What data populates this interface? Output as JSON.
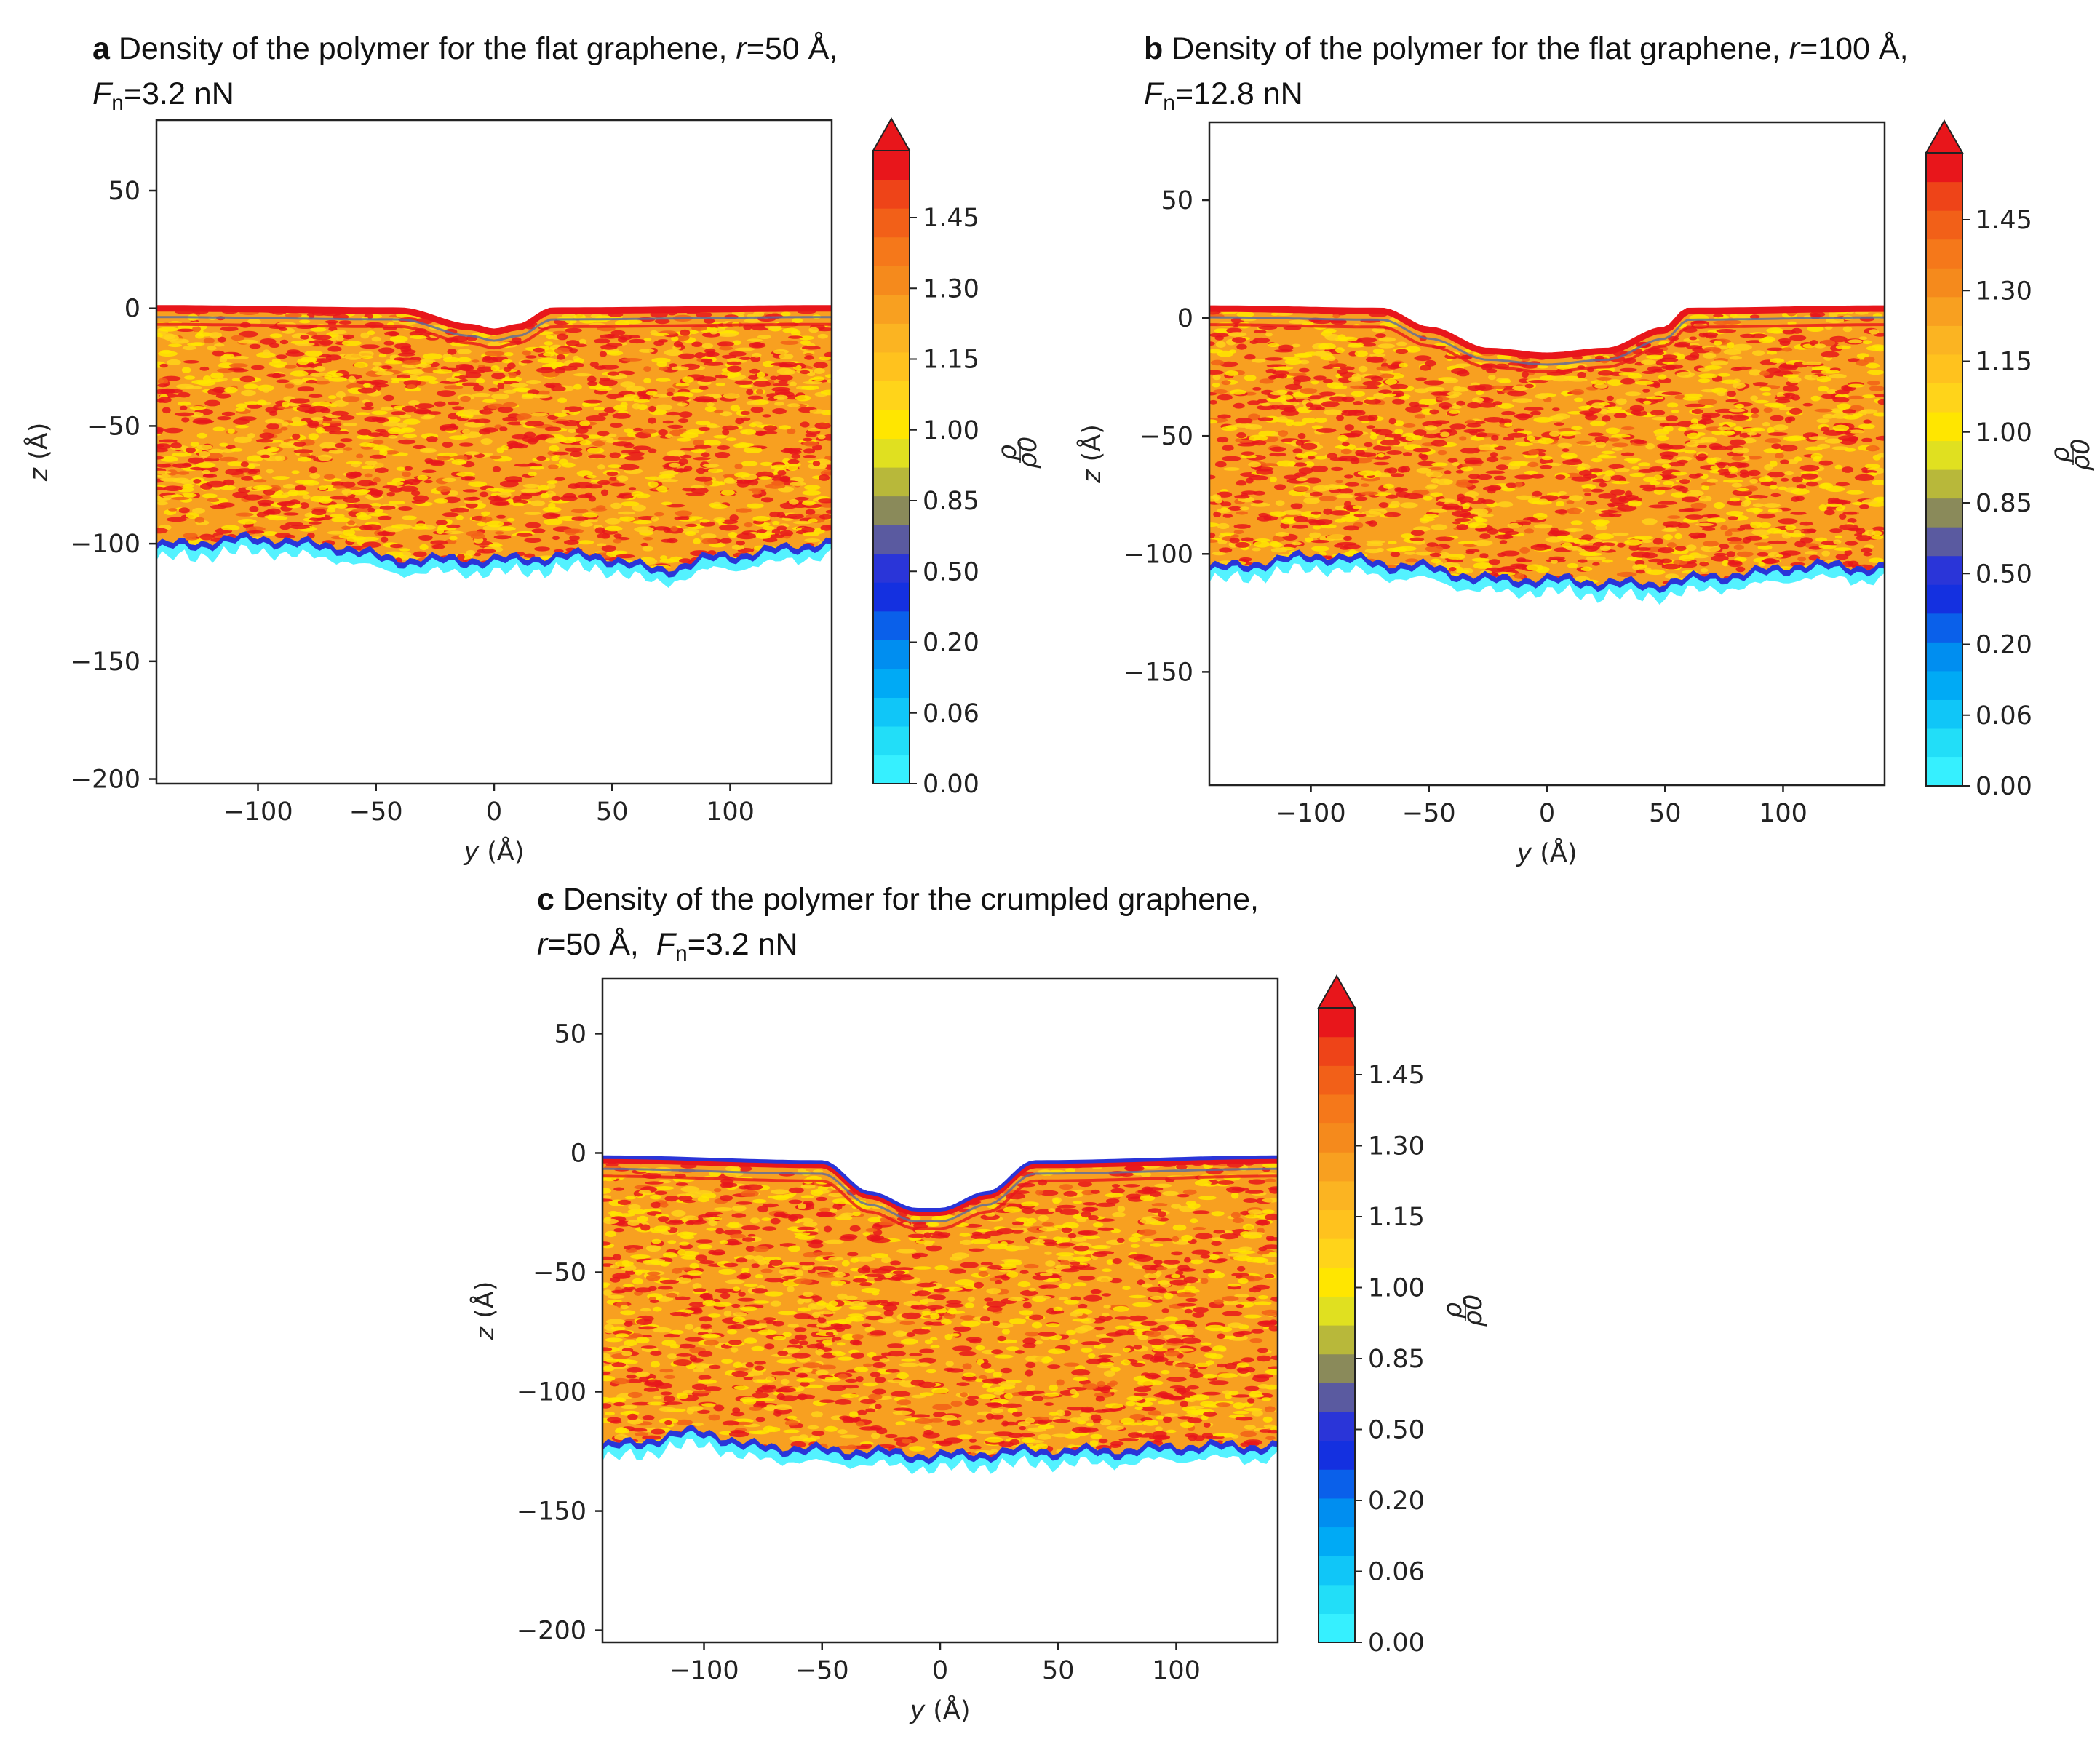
{
  "figure": {
    "panels": [
      {
        "id": "a",
        "letter": "a",
        "title_line1": "Density of the polymer for the flat graphene,",
        "title_r_sym": "r",
        "title_r_val": "=50 Å,",
        "title_F_sym": "F",
        "title_F_sub": "n",
        "title_F_val": "=3.2 nN"
      },
      {
        "id": "b",
        "letter": "b",
        "title_line1": "Density of the polymer for the flat graphene,",
        "title_r_sym": "r",
        "title_r_val": "=100 Å,",
        "title_F_sym": "F",
        "title_F_sub": "n",
        "title_F_val": "=12.8 nN"
      },
      {
        "id": "c",
        "letter": "c",
        "title_line1": "Density of the polymer for the crumpled graphene,",
        "title_r_sym": "r",
        "title_r_val": "=50 Å,",
        "title_F_sym": "F",
        "title_F_sub": "n",
        "title_F_val": "=3.2 nN"
      }
    ],
    "colors": {
      "very_high": "#e8161b",
      "high": "#f5781a",
      "mid": "#fbb422",
      "low_mid": "#ffe600",
      "neutral": "#8a8a5a",
      "low": "#2a35d8",
      "very_low": "#00b4ff",
      "zero": "#36f0ff",
      "frame": "#222222"
    }
  },
  "chart_data": [
    {
      "panel": "a",
      "type": "heatmap",
      "title": "Density of the polymer for the flat graphene, r=50 Å, Fn=3.2 nN",
      "xlabel": "y (Å)",
      "ylabel": "z (Å)",
      "colorbar_label": "ρ/ρ0",
      "xlim": [
        -143,
        143
      ],
      "ylim": [
        -202,
        80
      ],
      "xticks": [
        -100,
        -50,
        0,
        50,
        100
      ],
      "yticks": [
        50,
        0,
        -50,
        -100,
        -150,
        -200
      ],
      "colorbar_ticks": [
        "0.00",
        "0.06",
        "0.20",
        "0.50",
        "0.85",
        "1.00",
        "1.15",
        "1.30",
        "1.45"
      ],
      "surface_profile": {
        "y": [
          -143,
          -40,
          -10,
          0,
          10,
          25,
          143
        ],
        "z": [
          0,
          -1,
          -8,
          -10,
          -8,
          -1,
          0
        ]
      },
      "bottom_profile": {
        "y": [
          -143,
          -100,
          -70,
          -40,
          0,
          40,
          70,
          100,
          143
        ],
        "z": [
          -100,
          -97,
          -100,
          -106,
          -106,
          -104,
          -110,
          -104,
          -99
        ]
      }
    },
    {
      "panel": "b",
      "type": "heatmap",
      "title": "Density of the polymer for the flat graphene, r=100 Å, Fn=12.8 nN",
      "xlabel": "y (Å)",
      "ylabel": "z (Å)",
      "colorbar_label": "ρ/ρ0",
      "xlim": [
        -143,
        143
      ],
      "ylim": [
        -198,
        83
      ],
      "xticks": [
        -100,
        -50,
        0,
        50,
        100
      ],
      "yticks": [
        50,
        0,
        -50,
        -100,
        -150
      ],
      "colorbar_ticks": [
        "0.00",
        "0.06",
        "0.20",
        "0.50",
        "0.85",
        "1.00",
        "1.15",
        "1.30",
        "1.45"
      ],
      "surface_profile": {
        "y": [
          -143,
          -70,
          -50,
          -25,
          0,
          25,
          50,
          60,
          143
        ],
        "z": [
          4,
          3,
          -5,
          -14,
          -16,
          -14,
          -5,
          3,
          4
        ]
      },
      "bottom_profile": {
        "y": [
          -143,
          -95,
          -60,
          -20,
          0,
          40,
          80,
          110,
          143
        ],
        "z": [
          -105,
          -100,
          -104,
          -110,
          -110,
          -112,
          -108,
          -104,
          -105
        ]
      }
    },
    {
      "panel": "c",
      "type": "heatmap",
      "title": "Density of the polymer for the crumpled graphene, r=50 Å, Fn=3.2 nN",
      "xlabel": "y (Å)",
      "ylabel": "z (Å)",
      "colorbar_label": "ρ/ρ0",
      "xlim": [
        -143,
        143
      ],
      "ylim": [
        -205,
        73
      ],
      "xticks": [
        -100,
        -50,
        0,
        50,
        100
      ],
      "yticks": [
        50,
        0,
        -50,
        -100,
        -150,
        -200
      ],
      "colorbar_ticks": [
        "0.00",
        "0.06",
        "0.20",
        "0.50",
        "0.85",
        "1.00",
        "1.15",
        "1.30",
        "1.45"
      ],
      "surface_profile": {
        "y": [
          -143,
          -50,
          -30,
          -10,
          0,
          20,
          40,
          143
        ],
        "z": [
          -3,
          -5,
          -18,
          -25,
          -25,
          -18,
          -5,
          -3
        ]
      },
      "bottom_profile": {
        "y": [
          -143,
          -100,
          -80,
          -40,
          0,
          40,
          70,
          110,
          143
        ],
        "z": [
          -122,
          -116,
          -122,
          -124,
          -126,
          -124,
          -124,
          -122,
          -122
        ]
      }
    }
  ]
}
